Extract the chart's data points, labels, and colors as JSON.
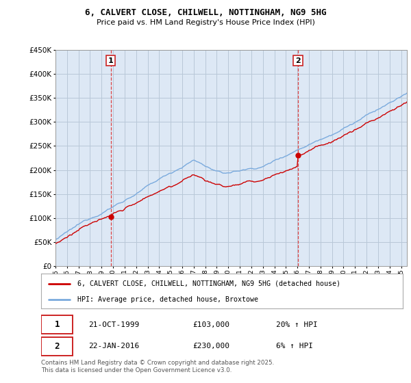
{
  "title": "6, CALVERT CLOSE, CHILWELL, NOTTINGHAM, NG9 5HG",
  "subtitle": "Price paid vs. HM Land Registry's House Price Index (HPI)",
  "legend_line1": "6, CALVERT CLOSE, CHILWELL, NOTTINGHAM, NG9 5HG (detached house)",
  "legend_line2": "HPI: Average price, detached house, Broxtowe",
  "sale1_date": "21-OCT-1999",
  "sale1_price": "£103,000",
  "sale1_hpi": "20% ↑ HPI",
  "sale2_date": "22-JAN-2016",
  "sale2_price": "£230,000",
  "sale2_hpi": "6% ↑ HPI",
  "footer": "Contains HM Land Registry data © Crown copyright and database right 2025.\nThis data is licensed under the Open Government Licence v3.0.",
  "house_color": "#cc0000",
  "hpi_color": "#7aaadd",
  "vline_color": "#dd4444",
  "ylim": [
    0,
    450000
  ],
  "yticks": [
    0,
    50000,
    100000,
    150000,
    200000,
    250000,
    300000,
    350000,
    400000,
    450000
  ],
  "year_start": 1995,
  "year_end": 2025,
  "sale1_year": 1999.8,
  "sale2_year": 2016.05,
  "background_color": "#ffffff",
  "plot_bg_color": "#dde8f5",
  "grid_color": "#b8c8d8"
}
